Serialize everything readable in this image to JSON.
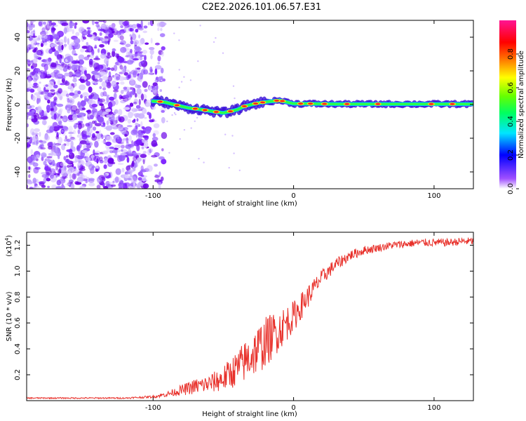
{
  "figure_title": "C2E2.2026.101.06.57.E31",
  "chart_data": [
    {
      "type": "heatmap",
      "xlabel": "Height of straight line (km)",
      "ylabel": "Frequency (Hz)",
      "xlim": [
        -190,
        128
      ],
      "ylim": [
        -50,
        50
      ],
      "xticks": [
        -100,
        0,
        100
      ],
      "yticks": [
        -40,
        -20,
        0,
        20,
        40
      ],
      "noise_region_x": [
        -190,
        -92
      ],
      "signal_start_x": -100,
      "signal_track": {
        "x": [
          -100,
          -92,
          -85,
          -75,
          -65,
          -58,
          -50,
          -45,
          -40,
          -35,
          -30,
          -25,
          -20,
          -15,
          -10,
          -5,
          0,
          10,
          30,
          60,
          100,
          128
        ],
        "freq": [
          2,
          1.5,
          0,
          -2,
          -3,
          -4,
          -5,
          -4,
          -3,
          -1,
          0,
          1,
          1.5,
          2,
          2.5,
          1.5,
          0.5,
          0.5,
          0.3,
          0.3,
          0.3,
          0.3
        ]
      },
      "colorbar": {
        "label": "Normalized spectral amplitude",
        "range": [
          0,
          1
        ],
        "ticks": [
          "0.0",
          "0.2",
          "0.4",
          "0.6",
          "0.8"
        ],
        "colors": [
          "#ffffff",
          "#8a2be2",
          "#0000ff",
          "#00e5ff",
          "#00ff00",
          "#ffff00",
          "#ff8000",
          "#ff0000",
          "#ff1493"
        ]
      }
    },
    {
      "type": "line",
      "xlabel": "Height of straight line (km)",
      "ylabel": "SNR (10 * v/v)",
      "scale_label": "(x10",
      "scale_exp": "4",
      "scale_close": ")",
      "xlim": [
        -190,
        128
      ],
      "ylim": [
        0.0,
        1.3
      ],
      "xticks": [
        -100,
        0,
        100
      ],
      "yticks": [
        0.2,
        0.4,
        0.6,
        0.8,
        1.0,
        1.2
      ],
      "series": [
        {
          "name": "SNR",
          "color": "#e8302a",
          "x": [
            -190,
            -120,
            -100,
            -90,
            -80,
            -70,
            -60,
            -50,
            -40,
            -30,
            -20,
            -10,
            0,
            10,
            20,
            30,
            40,
            50,
            60,
            70,
            80,
            90,
            100,
            110,
            120,
            128
          ],
          "y": [
            0.02,
            0.02,
            0.03,
            0.05,
            0.08,
            0.11,
            0.13,
            0.17,
            0.25,
            0.35,
            0.45,
            0.55,
            0.65,
            0.8,
            0.95,
            1.05,
            1.12,
            1.16,
            1.18,
            1.2,
            1.21,
            1.22,
            1.22,
            1.22,
            1.23,
            1.23
          ],
          "noise": [
            0.005,
            0.005,
            0.01,
            0.02,
            0.04,
            0.06,
            0.07,
            0.1,
            0.14,
            0.18,
            0.2,
            0.16,
            0.12,
            0.09,
            0.06,
            0.05,
            0.04,
            0.035,
            0.03,
            0.03,
            0.03,
            0.03,
            0.03,
            0.03,
            0.03,
            0.03
          ]
        }
      ]
    }
  ]
}
